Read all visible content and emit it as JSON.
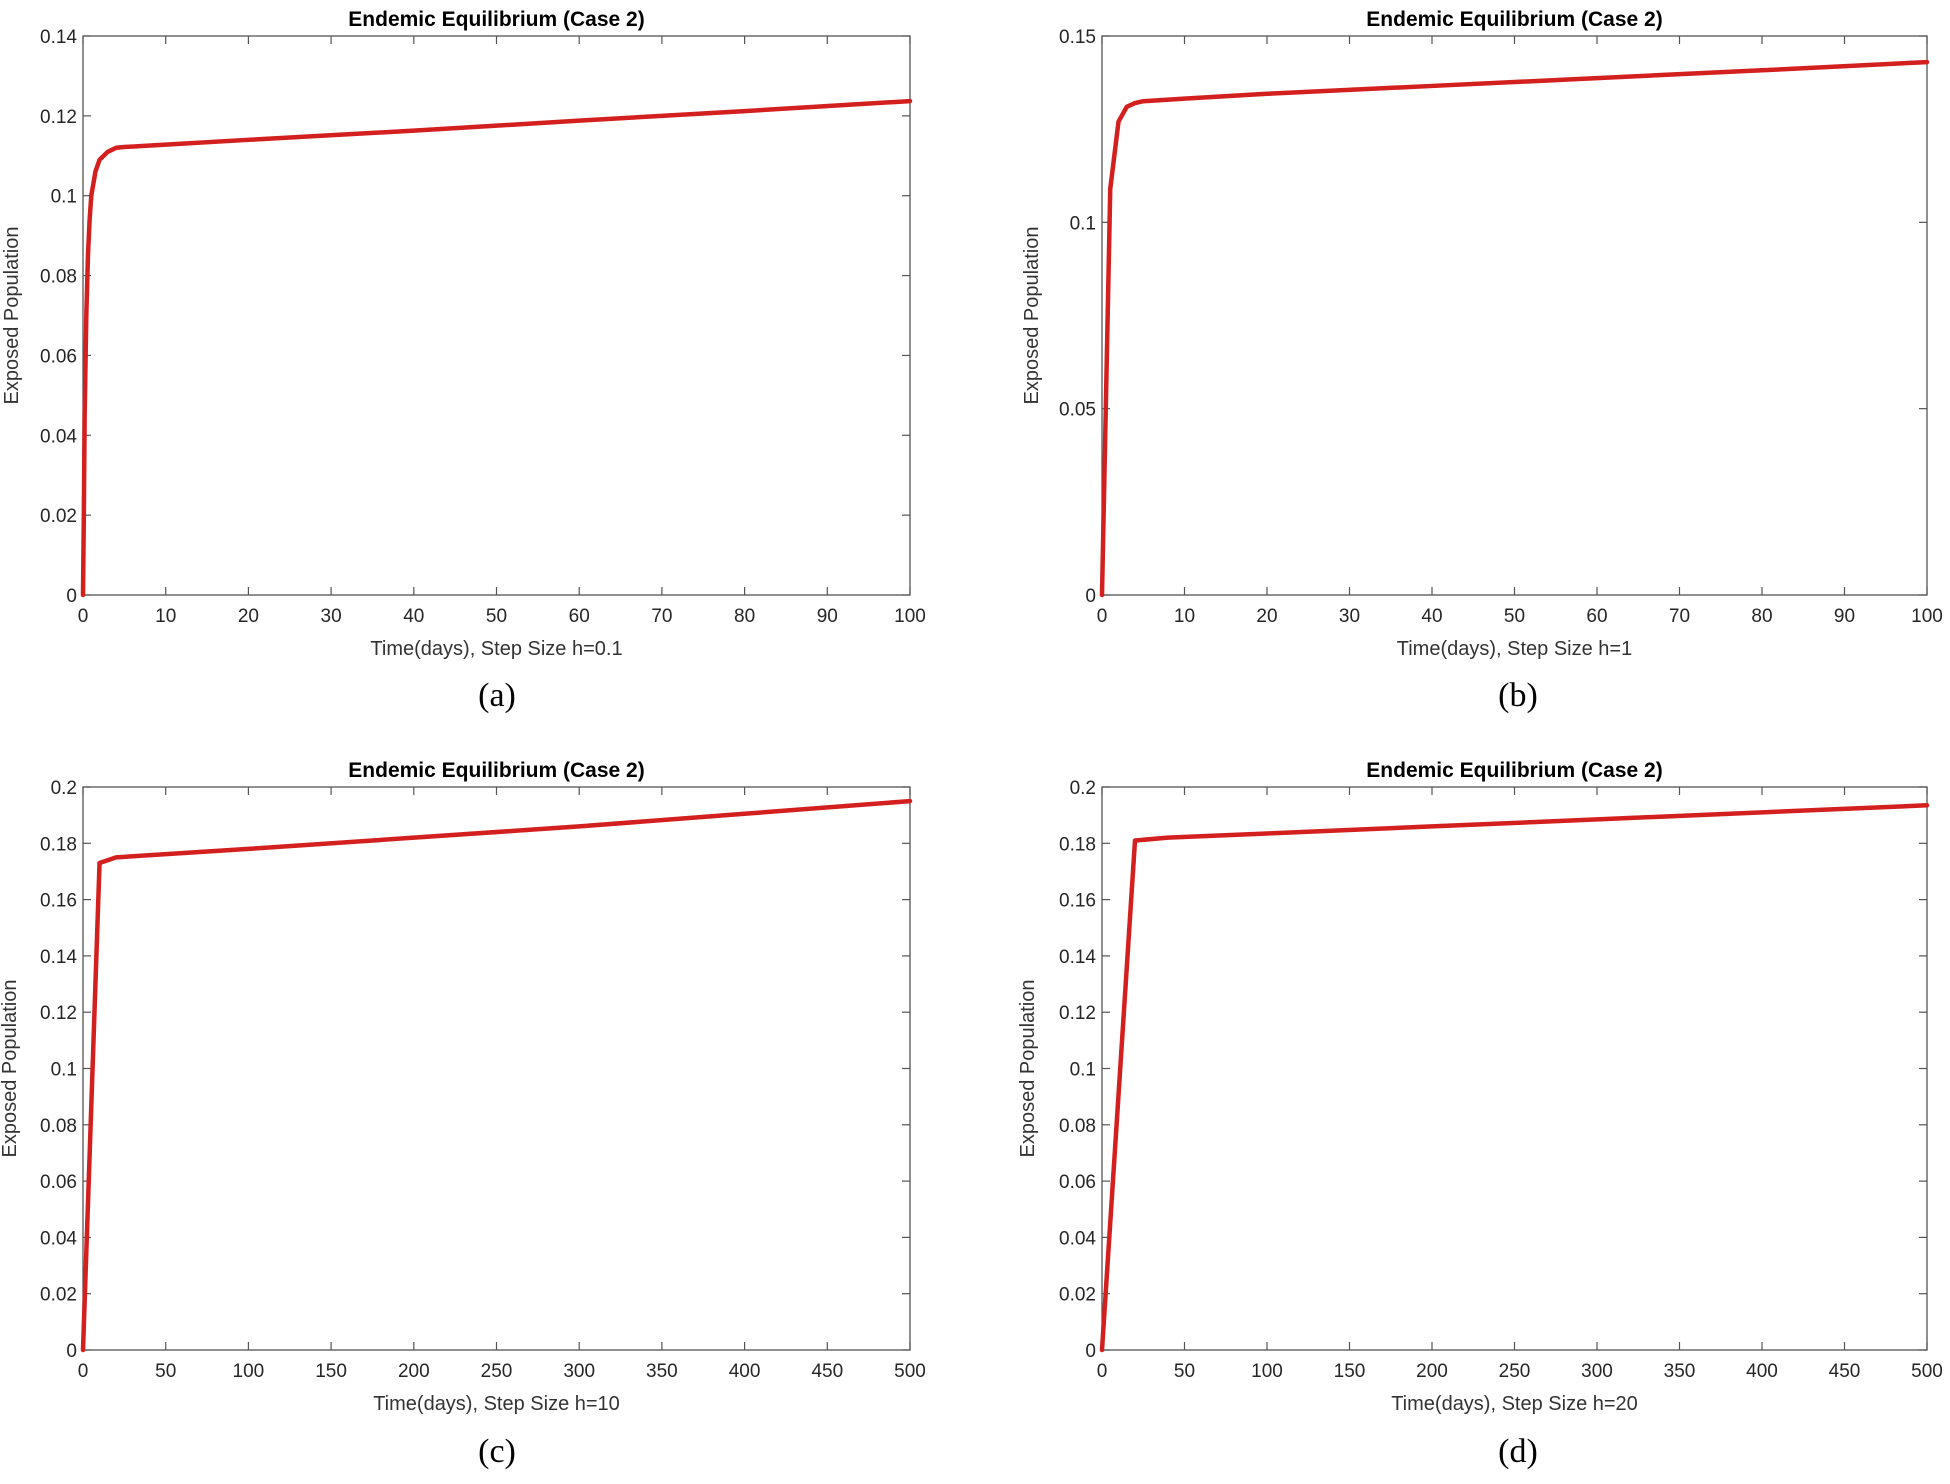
{
  "figure": {
    "panels": [
      {
        "caption": "(a)"
      },
      {
        "caption": "(b)"
      },
      {
        "caption": "(c)"
      },
      {
        "caption": "(d)"
      }
    ]
  },
  "chart_data": [
    {
      "type": "line",
      "title": "Endemic Equilibrium (Case 2)",
      "xlabel": "Time(days), Step Size h=0.1",
      "ylabel": "Exposed Population",
      "xlim": [
        0,
        100
      ],
      "ylim": [
        0,
        0.14
      ],
      "xticks": [
        0,
        10,
        20,
        30,
        40,
        50,
        60,
        70,
        80,
        90,
        100
      ],
      "xtick_labels": [
        "0",
        "10",
        "20",
        "30",
        "40",
        "50",
        "60",
        "70",
        "80",
        "90",
        "100"
      ],
      "yticks": [
        0,
        0.02,
        0.04,
        0.06,
        0.08,
        0.1,
        0.12,
        0.14
      ],
      "ytick_labels": [
        "0",
        "0.02",
        "0.04",
        "0.06",
        "0.08",
        "0.1",
        "0.12",
        "0.14"
      ],
      "grid": false,
      "series": [
        {
          "name": "Exposed",
          "color": "#d41f1f",
          "x": [
            0,
            0.1,
            0.2,
            0.4,
            0.6,
            0.8,
            1,
            1.5,
            2,
            3,
            4,
            5,
            10,
            20,
            40,
            60,
            80,
            100
          ],
          "y": [
            0,
            0.02,
            0.045,
            0.07,
            0.085,
            0.094,
            0.1,
            0.106,
            0.109,
            0.111,
            0.112,
            0.1122,
            0.1128,
            0.114,
            0.1163,
            0.1188,
            0.1212,
            0.1237
          ]
        }
      ]
    },
    {
      "type": "line",
      "title": "Endemic Equilibrium (Case 2)",
      "xlabel": "Time(days), Step Size h=1",
      "ylabel": "Exposed Population",
      "xlim": [
        0,
        100
      ],
      "ylim": [
        0,
        0.15
      ],
      "xticks": [
        0,
        10,
        20,
        30,
        40,
        50,
        60,
        70,
        80,
        90,
        100
      ],
      "xtick_labels": [
        "0",
        "10",
        "20",
        "30",
        "40",
        "50",
        "60",
        "70",
        "80",
        "90",
        "100"
      ],
      "yticks": [
        0,
        0.05,
        0.1,
        0.15
      ],
      "ytick_labels": [
        "0",
        "0.05",
        "0.1",
        "0.15"
      ],
      "grid": false,
      "series": [
        {
          "name": "Exposed",
          "color": "#d41f1f",
          "x": [
            0,
            1,
            2,
            3,
            4,
            5,
            10,
            20,
            40,
            60,
            80,
            100
          ],
          "y": [
            0,
            0.109,
            0.127,
            0.131,
            0.132,
            0.1325,
            0.1332,
            0.1345,
            0.1366,
            0.1387,
            0.1408,
            0.143
          ]
        }
      ]
    },
    {
      "type": "line",
      "title": "Endemic Equilibrium (Case 2)",
      "xlabel": "Time(days), Step Size h=10",
      "ylabel": "Exposed Population",
      "xlim": [
        0,
        500
      ],
      "ylim": [
        0,
        0.2
      ],
      "xticks": [
        0,
        50,
        100,
        150,
        200,
        250,
        300,
        350,
        400,
        450,
        500
      ],
      "xtick_labels": [
        "0",
        "50",
        "100",
        "150",
        "200",
        "250",
        "300",
        "350",
        "400",
        "450",
        "500"
      ],
      "yticks": [
        0,
        0.02,
        0.04,
        0.06,
        0.08,
        0.1,
        0.12,
        0.14,
        0.16,
        0.18,
        0.2
      ],
      "ytick_labels": [
        "0",
        "0.02",
        "0.04",
        "0.06",
        "0.08",
        "0.1",
        "0.12",
        "0.14",
        "0.16",
        "0.18",
        "0.2"
      ],
      "grid": false,
      "series": [
        {
          "name": "Exposed",
          "color": "#d41f1f",
          "x": [
            0,
            10,
            20,
            100,
            200,
            300,
            400,
            500
          ],
          "y": [
            0,
            0.173,
            0.175,
            0.178,
            0.182,
            0.186,
            0.1905,
            0.195
          ]
        }
      ]
    },
    {
      "type": "line",
      "title": "Endemic Equilibrium (Case 2)",
      "xlabel": "Time(days), Step Size h=20",
      "ylabel": "Exposed Population",
      "xlim": [
        0,
        500
      ],
      "ylim": [
        0,
        0.2
      ],
      "xticks": [
        0,
        50,
        100,
        150,
        200,
        250,
        300,
        350,
        400,
        450,
        500
      ],
      "xtick_labels": [
        "0",
        "50",
        "100",
        "150",
        "200",
        "250",
        "300",
        "350",
        "400",
        "450",
        "500"
      ],
      "yticks": [
        0,
        0.02,
        0.04,
        0.06,
        0.08,
        0.1,
        0.12,
        0.14,
        0.16,
        0.18,
        0.2
      ],
      "ytick_labels": [
        "0",
        "0.02",
        "0.04",
        "0.06",
        "0.08",
        "0.1",
        "0.12",
        "0.14",
        "0.16",
        "0.18",
        "0.2"
      ],
      "grid": false,
      "series": [
        {
          "name": "Exposed",
          "color": "#d41f1f",
          "x": [
            0,
            20,
            40,
            100,
            200,
            300,
            400,
            500
          ],
          "y": [
            0,
            0.181,
            0.182,
            0.1835,
            0.186,
            0.1885,
            0.191,
            0.1935
          ]
        }
      ]
    }
  ]
}
